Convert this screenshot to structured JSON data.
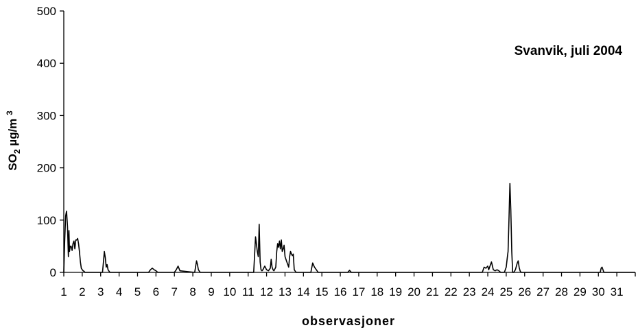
{
  "chart_data": {
    "type": "line",
    "title": "Svanvik, juli 2004",
    "xlabel": "observasjoner",
    "ylabel": {
      "main": "SO",
      "sub": "2",
      "unit": " µg/m ",
      "sup": "3"
    },
    "ylim": [
      0,
      500
    ],
    "yticks": [
      0,
      100,
      200,
      300,
      400,
      500
    ],
    "xlim": [
      1,
      32
    ],
    "xticks": [
      1,
      2,
      3,
      4,
      5,
      6,
      7,
      8,
      9,
      10,
      11,
      12,
      13,
      14,
      15,
      16,
      17,
      18,
      19,
      20,
      21,
      22,
      23,
      24,
      25,
      26,
      27,
      28,
      29,
      30,
      31
    ],
    "grid": false,
    "series": [
      {
        "color": "#000000",
        "x": [
          1.0,
          1.05,
          1.1,
          1.15,
          1.2,
          1.25,
          1.28,
          1.31,
          1.35,
          1.4,
          1.45,
          1.5,
          1.55,
          1.6,
          1.65,
          1.7,
          1.75,
          1.8,
          1.85,
          1.9,
          1.95,
          2.0,
          2.05,
          2.1,
          2.15,
          2.2,
          3.0,
          3.1,
          3.15,
          3.2,
          3.25,
          3.3,
          3.35,
          3.4,
          3.5,
          5.6,
          5.7,
          5.8,
          5.9,
          6.0,
          6.1,
          7.0,
          7.1,
          7.2,
          7.3,
          8.1,
          8.2,
          8.25,
          8.3,
          8.4,
          11.3,
          11.4,
          11.5,
          11.55,
          11.6,
          11.65,
          11.7,
          11.75,
          11.8,
          11.9,
          12.0,
          12.1,
          12.2,
          12.25,
          12.3,
          12.35,
          12.4,
          12.5,
          12.55,
          12.6,
          12.65,
          12.7,
          12.75,
          12.8,
          12.85,
          12.9,
          12.95,
          13.0,
          13.1,
          13.2,
          13.25,
          13.3,
          13.35,
          13.4,
          13.45,
          13.5,
          13.6,
          14.4,
          14.5,
          14.6,
          14.7,
          14.8,
          16.4,
          16.5,
          16.6,
          23.7,
          23.8,
          23.9,
          24.0,
          24.05,
          24.1,
          24.2,
          24.3,
          24.4,
          24.5,
          24.6,
          24.7,
          24.8,
          24.9,
          25.0,
          25.05,
          25.1,
          25.15,
          25.2,
          25.25,
          25.3,
          25.35,
          25.4,
          25.5,
          25.6,
          25.65,
          25.7,
          25.75,
          25.8,
          25.9,
          30.0,
          30.1,
          30.15,
          30.2,
          30.3,
          32.0
        ],
        "y": [
          0,
          60,
          108,
          117,
          88,
          30,
          80,
          40,
          50,
          50,
          42,
          55,
          60,
          45,
          62,
          62,
          65,
          55,
          40,
          20,
          8,
          5,
          3,
          2,
          0,
          0,
          0,
          0,
          20,
          40,
          28,
          10,
          15,
          5,
          0,
          0,
          5,
          8,
          5,
          3,
          0,
          0,
          5,
          12,
          3,
          0,
          22,
          15,
          5,
          0,
          0,
          68,
          40,
          30,
          92,
          20,
          5,
          3,
          5,
          12,
          5,
          3,
          8,
          25,
          10,
          5,
          3,
          10,
          40,
          55,
          48,
          60,
          45,
          62,
          40,
          45,
          52,
          30,
          20,
          10,
          30,
          40,
          35,
          32,
          35,
          5,
          0,
          0,
          18,
          10,
          5,
          0,
          0,
          4,
          0,
          0,
          10,
          8,
          12,
          5,
          10,
          20,
          5,
          3,
          5,
          3,
          0,
          0,
          0,
          10,
          25,
          40,
          100,
          170,
          120,
          40,
          0,
          0,
          5,
          18,
          22,
          10,
          3,
          0,
          0,
          0,
          0,
          8,
          10,
          0,
          0
        ]
      }
    ]
  }
}
